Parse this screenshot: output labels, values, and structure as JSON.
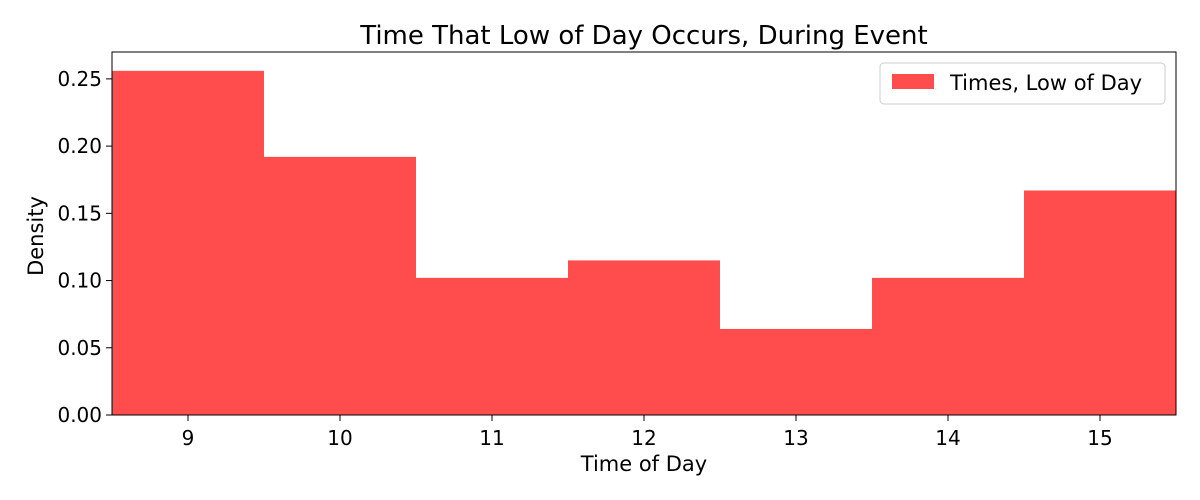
{
  "chart_data": {
    "type": "bar",
    "title": "Time That Low of Day Occurs, During Event",
    "xlabel": "Time of Day",
    "ylabel": "Density",
    "x": [
      9,
      10,
      11,
      12,
      13,
      14,
      15
    ],
    "values": [
      0.256,
      0.192,
      0.102,
      0.115,
      0.064,
      0.102,
      0.167
    ],
    "bar_width": 1,
    "xlim": [
      8.5,
      15.5
    ],
    "ylim": [
      0,
      0.27
    ],
    "xticks": [
      "9",
      "10",
      "11",
      "12",
      "13",
      "14",
      "15"
    ],
    "yticks": [
      "0.00",
      "0.05",
      "0.10",
      "0.15",
      "0.20",
      "0.25"
    ],
    "ytick_values": [
      0,
      0.05,
      0.1,
      0.15,
      0.2,
      0.25
    ],
    "series": [
      {
        "name": "Times, Low of Day",
        "color": "#ff4c4c"
      }
    ],
    "legend_position": "top-right",
    "grid": false
  }
}
